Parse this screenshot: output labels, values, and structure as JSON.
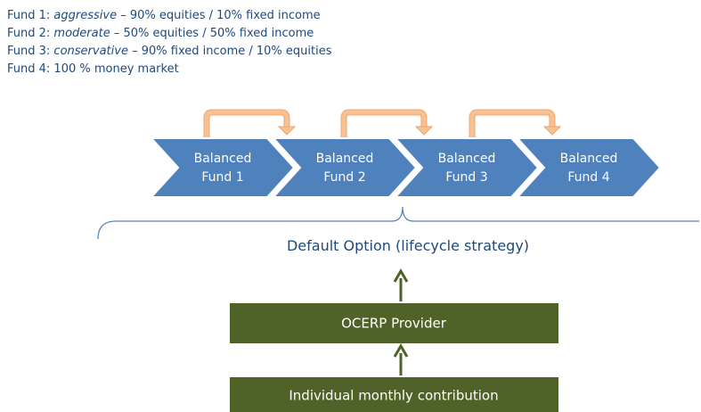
{
  "legend": [
    {
      "label": "Fund 1:",
      "style": "aggressive",
      "detail": "– 90% equities / 10% fixed income"
    },
    {
      "label": "Fund 2:",
      "style": "moderate",
      "detail": "– 50% equities / 50% fixed income"
    },
    {
      "label": "Fund 3:",
      "style": "conservative",
      "detail": "– 90% fixed income / 10% equities"
    },
    {
      "label": "Fund 4:",
      "detail": "100 % money market"
    }
  ],
  "nodes": [
    {
      "lines": [
        "Balanced",
        "Fund 1"
      ]
    },
    {
      "lines": [
        "Balanced",
        "Fund 2"
      ]
    },
    {
      "lines": [
        "Balanced",
        "Fund 3"
      ]
    },
    {
      "lines": [
        "Balanced",
        "Fund 4"
      ]
    }
  ],
  "default_option": "Default Option (lifecycle strategy)",
  "provider": "OCERP Provider",
  "contribution": "Individual monthly contribution"
}
